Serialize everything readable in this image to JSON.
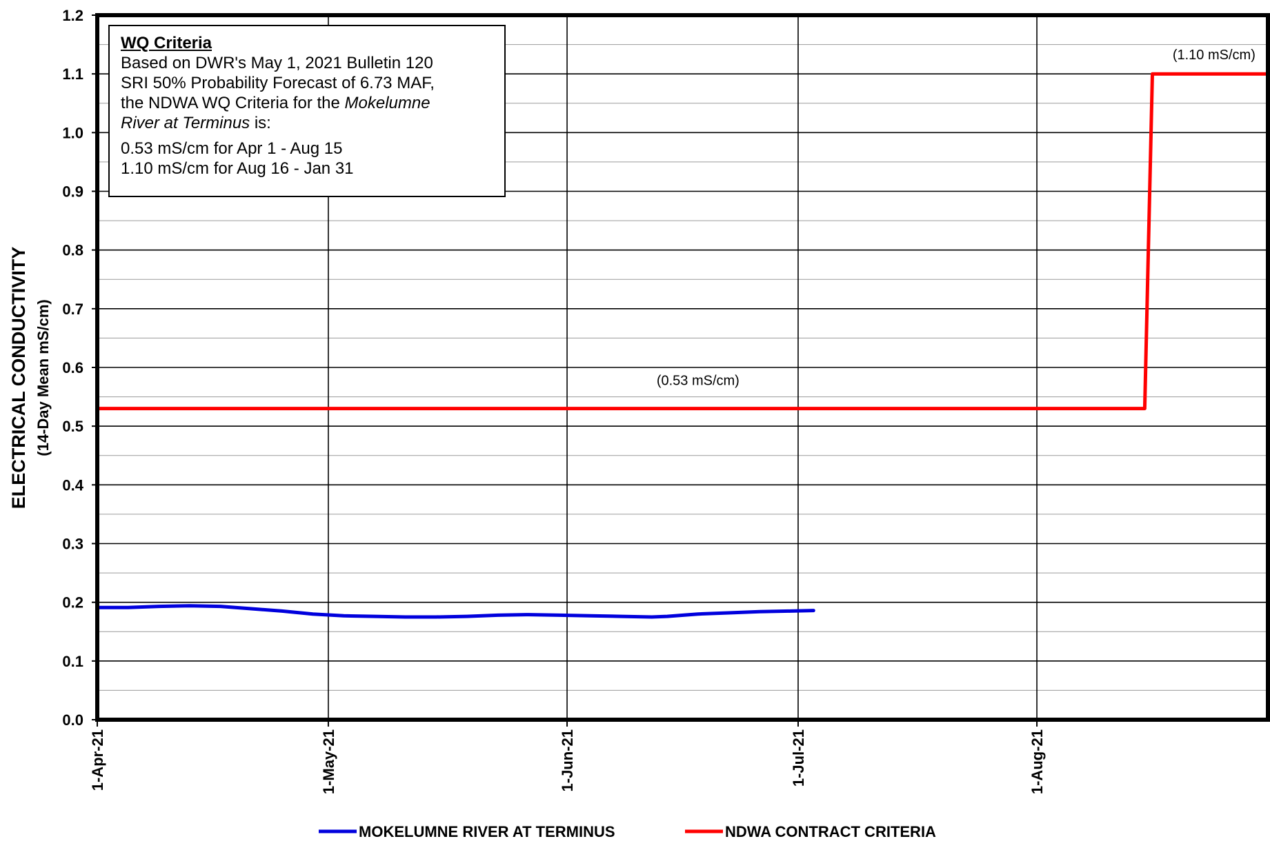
{
  "chart_data": {
    "type": "line",
    "ylabel": "ELECTRICAL CONDUCTIVITY",
    "ylabel_sub": "(14-Day Mean mS/cm)",
    "ylim": [
      0.0,
      1.2
    ],
    "yticks": [
      "0.0",
      "0.1",
      "0.2",
      "0.3",
      "0.4",
      "0.5",
      "0.6",
      "0.7",
      "0.8",
      "0.9",
      "1.0",
      "1.1",
      "1.2"
    ],
    "xlim": [
      "2021-04-01",
      "2021-08-31"
    ],
    "xticks": [
      {
        "date": "2021-04-01",
        "label": "1-Apr-21"
      },
      {
        "date": "2021-05-01",
        "label": "1-May-21"
      },
      {
        "date": "2021-06-01",
        "label": "1-Jun-21"
      },
      {
        "date": "2021-07-01",
        "label": "1-Jul-21"
      },
      {
        "date": "2021-08-01",
        "label": "1-Aug-21"
      }
    ],
    "grid": true,
    "legend_position": "bottom",
    "series": [
      {
        "name": "MOKELUMNE RIVER AT TERMINUS",
        "color": "#0000dd",
        "points": [
          [
            "2021-04-01",
            0.191
          ],
          [
            "2021-04-05",
            0.191
          ],
          [
            "2021-04-09",
            0.193
          ],
          [
            "2021-04-13",
            0.194
          ],
          [
            "2021-04-17",
            0.193
          ],
          [
            "2021-04-21",
            0.189
          ],
          [
            "2021-04-25",
            0.185
          ],
          [
            "2021-04-29",
            0.18
          ],
          [
            "2021-05-03",
            0.177
          ],
          [
            "2021-05-07",
            0.176
          ],
          [
            "2021-05-11",
            0.175
          ],
          [
            "2021-05-15",
            0.175
          ],
          [
            "2021-05-19",
            0.176
          ],
          [
            "2021-05-23",
            0.178
          ],
          [
            "2021-05-27",
            0.179
          ],
          [
            "2021-05-31",
            0.178
          ],
          [
            "2021-06-04",
            0.177
          ],
          [
            "2021-06-08",
            0.176
          ],
          [
            "2021-06-12",
            0.175
          ],
          [
            "2021-06-14",
            0.176
          ],
          [
            "2021-06-18",
            0.18
          ],
          [
            "2021-06-22",
            0.182
          ],
          [
            "2021-06-26",
            0.184
          ],
          [
            "2021-06-30",
            0.185
          ],
          [
            "2021-07-03",
            0.186
          ]
        ]
      },
      {
        "name": "NDWA CONTRACT CRITERIA",
        "color": "#ff0000",
        "points": [
          [
            "2021-04-01",
            0.53
          ],
          [
            "2021-08-15",
            0.53
          ],
          [
            "2021-08-16",
            1.1
          ],
          [
            "2021-08-31",
            1.1
          ]
        ]
      }
    ],
    "annotations": [
      {
        "text": "(0.53 mS/cm)",
        "date": "2021-06-18",
        "value": 0.57
      },
      {
        "text": "(1.10 mS/cm)",
        "date": "2021-08-24",
        "value": 1.125
      }
    ]
  },
  "criteria_box": {
    "title": "WQ Criteria",
    "line1": "Based on DWR's May 1, 2021 Bulletin 120",
    "line2": "SRI 50% Probability Forecast of 6.73 MAF,",
    "line3_prefix": "the NDWA WQ Criteria for the ",
    "line3_italic": "Mokelumne",
    "line4_italic": "River at Terminus",
    "line4_suffix": " is:",
    "line5": "0.53 mS/cm for Apr 1 - Aug 15",
    "line6": "1.10 mS/cm for Aug 16 - Jan 31"
  }
}
